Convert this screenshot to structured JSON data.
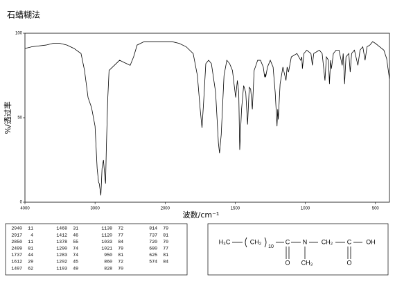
{
  "chart_data": {
    "type": "line",
    "title": "石蜡糊法",
    "x_label": "波数/cm⁻¹",
    "y_label": "%/透过率",
    "xlim": [
      4000,
      400
    ],
    "x_scale_break": 2000,
    "ylim": [
      0,
      100
    ],
    "xticks": [
      4000,
      3000,
      2000,
      1500,
      1000,
      500
    ],
    "yticks": [
      0,
      50,
      100
    ],
    "x": [
      4000,
      3900,
      3700,
      3600,
      3500,
      3400,
      3300,
      3200,
      3150,
      3100,
      3050,
      3000,
      2970,
      2950,
      2940,
      2930,
      2917,
      2900,
      2880,
      2860,
      2850,
      2840,
      2820,
      2800,
      2750,
      2700,
      2650,
      2600,
      2550,
      2499,
      2450,
      2400,
      2300,
      2200,
      2100,
      2000,
      1950,
      1900,
      1850,
      1800,
      1770,
      1750,
      1737,
      1725,
      1710,
      1690,
      1670,
      1640,
      1620,
      1612,
      1600,
      1580,
      1560,
      1540,
      1520,
      1497,
      1485,
      1475,
      1468,
      1455,
      1440,
      1425,
      1412,
      1400,
      1390,
      1378,
      1365,
      1340,
      1320,
      1300,
      1290,
      1286,
      1283,
      1270,
      1250,
      1230,
      1215,
      1202,
      1197,
      1193,
      1180,
      1160,
      1138,
      1130,
      1120,
      1100,
      1060,
      1033,
      1025,
      1021,
      1010,
      990,
      960,
      950,
      940,
      900,
      880,
      860,
      850,
      835,
      828,
      820,
      814,
      800,
      780,
      760,
      737,
      730,
      720,
      710,
      690,
      680,
      670,
      650,
      625,
      610,
      590,
      574,
      560,
      540,
      520,
      500,
      470,
      440,
      420,
      400
    ],
    "series": [
      {
        "color": "#000000",
        "values": [
          91,
          92,
          93,
          94,
          94,
          93,
          91,
          88,
          78,
          62,
          56,
          45,
          20,
          12,
          11,
          8,
          4,
          20,
          25,
          15,
          11,
          30,
          60,
          78,
          80,
          82,
          84,
          83,
          82,
          81,
          86,
          93,
          95,
          95,
          95,
          95,
          95,
          94,
          92,
          88,
          75,
          55,
          44,
          60,
          82,
          84,
          82,
          65,
          35,
          29,
          40,
          75,
          84,
          82,
          78,
          62,
          72,
          65,
          31,
          55,
          69,
          65,
          46,
          68,
          67,
          55,
          78,
          84,
          84,
          80,
          74,
          76,
          74,
          80,
          84,
          80,
          65,
          45,
          55,
          49,
          70,
          80,
          72,
          80,
          77,
          86,
          88,
          84,
          86,
          79,
          88,
          90,
          88,
          81,
          88,
          90,
          88,
          72,
          86,
          84,
          70,
          84,
          79,
          88,
          90,
          90,
          81,
          88,
          70,
          86,
          88,
          77,
          88,
          90,
          81,
          90,
          92,
          84,
          92,
          93,
          95,
          94,
          92,
          90,
          85,
          73
        ]
      }
    ]
  },
  "peak_table": [
    [
      2940,
      11
    ],
    [
      2917,
      4
    ],
    [
      2850,
      11
    ],
    [
      2499,
      81
    ],
    [
      1737,
      44
    ],
    [
      1612,
      29
    ],
    [
      1497,
      62
    ],
    [
      1468,
      31
    ],
    [
      1412,
      46
    ],
    [
      1378,
      55
    ],
    [
      1290,
      74
    ],
    [
      1283,
      74
    ],
    [
      1202,
      45
    ],
    [
      1193,
      49
    ],
    [
      1138,
      72
    ],
    [
      1120,
      77
    ],
    [
      1033,
      84
    ],
    [
      1021,
      79
    ],
    [
      950,
      81
    ],
    [
      860,
      72
    ],
    [
      828,
      70
    ],
    [
      814,
      79
    ],
    [
      737,
      81
    ],
    [
      720,
      70
    ],
    [
      680,
      77
    ],
    [
      625,
      81
    ],
    [
      574,
      84
    ]
  ],
  "structure": {
    "atoms": [
      "H₃C",
      "CH₂",
      "10",
      "C",
      "O",
      "N",
      "CH₃",
      "CH₂",
      "C",
      "O",
      "OH"
    ]
  }
}
